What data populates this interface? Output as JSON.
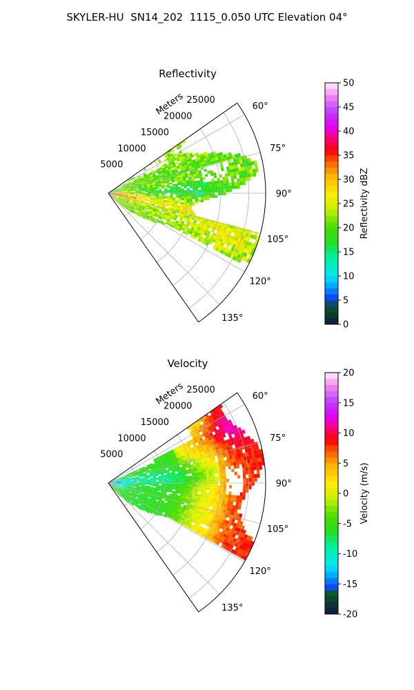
{
  "figure": {
    "suptitle": "SKYLER-HU  SN14_202  1115_0.050 UTC Elevation 04°"
  },
  "chart_data": [
    {
      "type": "heatmap",
      "projection": "polar-sector",
      "title": "Reflectivity",
      "radial_label": "Meters",
      "radial_ticks": [
        "5000",
        "10000",
        "15000",
        "20000",
        "25000"
      ],
      "radial_values": [
        5000,
        10000,
        15000,
        20000,
        25000
      ],
      "rlim": [
        0,
        28000
      ],
      "azimuth_ticks": [
        "60°",
        "75°",
        "90°",
        "105°",
        "120°",
        "135°"
      ],
      "azimuth_values": [
        60,
        75,
        90,
        105,
        120,
        135
      ],
      "azimuth_range_deg": [
        55,
        145
      ],
      "grid": true,
      "colorbar": {
        "label": "Reflectivity dBZ",
        "ticks": [
          "0",
          "5",
          "10",
          "15",
          "20",
          "25",
          "30",
          "35",
          "40",
          "45",
          "50"
        ],
        "vmin": 0,
        "vmax": 50,
        "colormap_stops": [
          {
            "v": 0,
            "c": "#0b1a4a"
          },
          {
            "v": 2,
            "c": "#0b3d2b"
          },
          {
            "v": 4,
            "c": "#0a5a30"
          },
          {
            "v": 5,
            "c": "#1030ff"
          },
          {
            "v": 8,
            "c": "#00a8ff"
          },
          {
            "v": 10,
            "c": "#00e8f0"
          },
          {
            "v": 14,
            "c": "#00f0a0"
          },
          {
            "v": 17,
            "c": "#20e020"
          },
          {
            "v": 20,
            "c": "#44dd00"
          },
          {
            "v": 24,
            "c": "#c8f000"
          },
          {
            "v": 27,
            "c": "#ffee00"
          },
          {
            "v": 31,
            "c": "#ffb000"
          },
          {
            "v": 34,
            "c": "#ff5000"
          },
          {
            "v": 36,
            "c": "#ff0000"
          },
          {
            "v": 39,
            "c": "#ff0090"
          },
          {
            "v": 41,
            "c": "#dd00ff"
          },
          {
            "v": 44,
            "c": "#c040ff"
          },
          {
            "v": 47,
            "c": "#f080f0"
          },
          {
            "v": 50,
            "c": "#fff0ff"
          }
        ]
      },
      "field_structure": [
        {
          "feature": "near-range maximum",
          "azimuth_deg": 96,
          "range_m": [
            0,
            4000
          ],
          "dbz": 33
        },
        {
          "feature": "yellow swath",
          "azimuth_deg": 100,
          "range_m": [
            4000,
            17000
          ],
          "dbz": 27
        },
        {
          "feature": "cyan-green core",
          "azimuth_deg": [
            84,
            92
          ],
          "range_m": [
            8000,
            22000
          ],
          "dbz": 15
        },
        {
          "feature": "green band",
          "azimuth_deg": [
            65,
            80
          ],
          "range_m": [
            8000,
            27000
          ],
          "dbz": 21
        },
        {
          "feature": "yellow rim",
          "azimuth_deg": [
            100,
            115
          ],
          "range_m": [
            18000,
            28000
          ],
          "dbz": 26
        }
      ]
    },
    {
      "type": "heatmap",
      "projection": "polar-sector",
      "title": "Velocity",
      "radial_label": "Meters",
      "radial_ticks": [
        "5000",
        "10000",
        "15000",
        "20000",
        "25000"
      ],
      "radial_values": [
        5000,
        10000,
        15000,
        20000,
        25000
      ],
      "rlim": [
        0,
        28000
      ],
      "azimuth_ticks": [
        "60°",
        "75°",
        "90°",
        "105°",
        "120°",
        "135°"
      ],
      "azimuth_values": [
        60,
        75,
        90,
        105,
        120,
        135
      ],
      "azimuth_range_deg": [
        55,
        145
      ],
      "grid": true,
      "colorbar": {
        "label": "Velocity (m/s)",
        "ticks": [
          "-20",
          "-15",
          "-10",
          "-5",
          "0",
          "5",
          "10",
          "15",
          "20"
        ],
        "vmin": -20,
        "vmax": 20,
        "colormap_stops": [
          {
            "v": -20,
            "c": "#0b1a4a"
          },
          {
            "v": -18,
            "c": "#0b3d2b"
          },
          {
            "v": -16.4,
            "c": "#0a5a30"
          },
          {
            "v": -16,
            "c": "#1030ff"
          },
          {
            "v": -13.6,
            "c": "#00a8ff"
          },
          {
            "v": -12,
            "c": "#00e8f0"
          },
          {
            "v": -8.8,
            "c": "#00f0a0"
          },
          {
            "v": -6.4,
            "c": "#20e020"
          },
          {
            "v": -4,
            "c": "#44dd00"
          },
          {
            "v": -0.8,
            "c": "#c8f000"
          },
          {
            "v": 1.6,
            "c": "#ffee00"
          },
          {
            "v": 4.8,
            "c": "#ffb000"
          },
          {
            "v": 7.2,
            "c": "#ff5000"
          },
          {
            "v": 8.8,
            "c": "#ff0000"
          },
          {
            "v": 11.2,
            "c": "#ff0090"
          },
          {
            "v": 12.8,
            "c": "#dd00ff"
          },
          {
            "v": 15.2,
            "c": "#c040ff"
          },
          {
            "v": 17.6,
            "c": "#f080f0"
          },
          {
            "v": 20,
            "c": "#fff0ff"
          }
        ]
      },
      "field_structure": [
        {
          "feature": "near-range inbound",
          "azimuth_deg": 92,
          "range_m": [
            0,
            3000
          ],
          "ms": -11
        },
        {
          "feature": "green inbound",
          "azimuth_deg": [
            88,
            130
          ],
          "range_m": [
            3000,
            12000
          ],
          "ms": -6
        },
        {
          "feature": "yellow transition",
          "azimuth_deg": [
            60,
            130
          ],
          "range_m": [
            12000,
            19000
          ],
          "ms": 1
        },
        {
          "feature": "red outbound",
          "azimuth_deg": [
            60,
            130
          ],
          "range_m": [
            19000,
            23000
          ],
          "ms": 8
        },
        {
          "feature": "magenta outbound",
          "azimuth_deg": [
            55,
            125
          ],
          "range_m": [
            23000,
            28000
          ],
          "ms": 13
        }
      ]
    }
  ]
}
